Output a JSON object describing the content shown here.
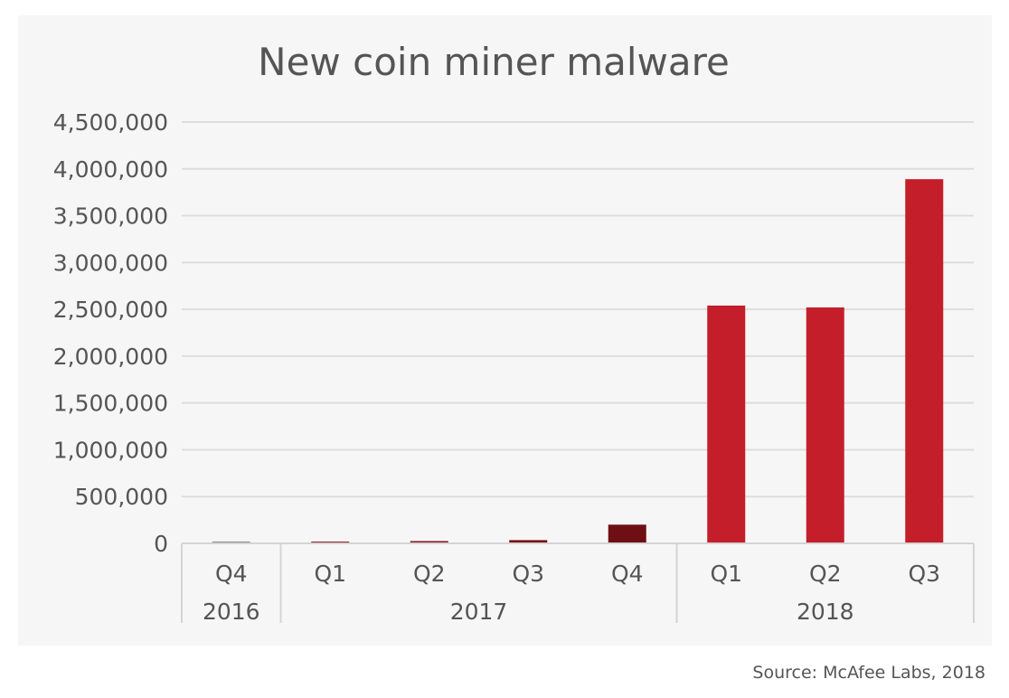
{
  "chart_data": {
    "type": "bar",
    "title": "New coin miner malware",
    "xlabel": "",
    "ylabel": "",
    "ylim": [
      0,
      4500000
    ],
    "yticks": [
      0,
      500000,
      1000000,
      1500000,
      2000000,
      2500000,
      3000000,
      3500000,
      4000000,
      4500000
    ],
    "ytick_labels": [
      "0",
      "500,000",
      "1,000,000",
      "1,500,000",
      "2,000,000",
      "2,500,000",
      "3,000,000",
      "3,500,000",
      "4,000,000",
      "4,500,000"
    ],
    "categories": [
      "Q4",
      "Q1",
      "Q2",
      "Q3",
      "Q4",
      "Q1",
      "Q2",
      "Q3"
    ],
    "groups": [
      {
        "label": "2016",
        "count": 1
      },
      {
        "label": "2017",
        "count": 4
      },
      {
        "label": "2018",
        "count": 3
      }
    ],
    "values": [
      20000,
      15000,
      25000,
      35000,
      200000,
      2540000,
      2520000,
      3890000
    ],
    "colors": [
      "#8c8c8c",
      "#8b1a24",
      "#8b1a24",
      "#7a1016",
      "#6e0f14",
      "#c41e2a",
      "#c41e2a",
      "#c41e2a"
    ],
    "grid": true,
    "legend": "none"
  },
  "source": "Source: McAfee Labs, 2018"
}
